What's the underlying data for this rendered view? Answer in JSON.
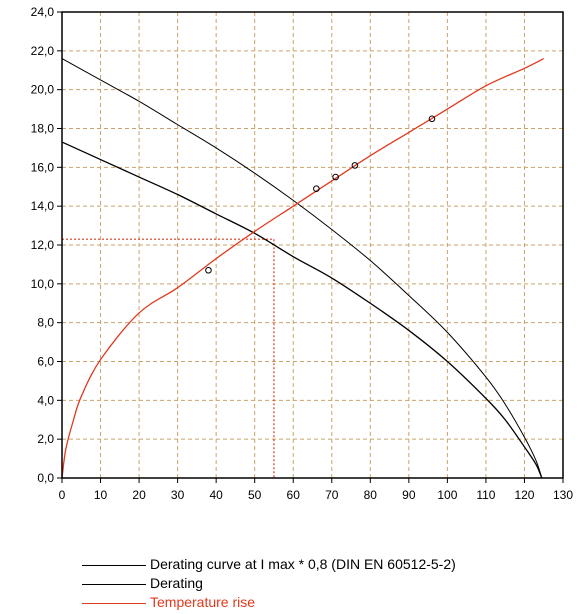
{
  "chart_data": {
    "type": "line",
    "title": "",
    "xlabel": "",
    "ylabel": "",
    "xlim": [
      0,
      130
    ],
    "ylim": [
      0,
      24
    ],
    "x_ticks": [
      "0",
      "10",
      "20",
      "30",
      "40",
      "50",
      "60",
      "70",
      "80",
      "90",
      "100",
      "110",
      "120",
      "130"
    ],
    "y_ticks": [
      "0,0",
      "2,0",
      "4,0",
      "6,0",
      "8,0",
      "10,0",
      "12,0",
      "14,0",
      "16,0",
      "18,0",
      "20,0",
      "22,0",
      "24,0"
    ],
    "grid": true,
    "legend_position": "bottom",
    "series": [
      {
        "name": "Derating curve at I max * 0,8 (DIN EN 60512-5-2)",
        "color": "#000000",
        "points": [
          [
            0,
            17.3
          ],
          [
            10,
            16.4
          ],
          [
            20,
            15.5
          ],
          [
            30,
            14.6
          ],
          [
            40,
            13.6
          ],
          [
            50,
            12.6
          ],
          [
            60,
            11.4
          ],
          [
            70,
            10.3
          ],
          [
            80,
            9.0
          ],
          [
            90,
            7.6
          ],
          [
            100,
            6.0
          ],
          [
            110,
            4.1
          ],
          [
            115,
            3.0
          ],
          [
            120,
            1.6
          ],
          [
            123,
            0.7
          ],
          [
            124.5,
            0.0
          ]
        ]
      },
      {
        "name": "Derating",
        "color": "#000000",
        "points": [
          [
            0,
            21.6
          ],
          [
            10,
            20.5
          ],
          [
            20,
            19.4
          ],
          [
            30,
            18.2
          ],
          [
            40,
            17.0
          ],
          [
            50,
            15.7
          ],
          [
            60,
            14.3
          ],
          [
            70,
            12.8
          ],
          [
            80,
            11.2
          ],
          [
            90,
            9.4
          ],
          [
            100,
            7.5
          ],
          [
            110,
            5.2
          ],
          [
            115,
            3.8
          ],
          [
            120,
            2.1
          ],
          [
            123,
            0.9
          ],
          [
            124.5,
            0.0
          ]
        ]
      },
      {
        "name": "Temperature rise",
        "color": "#e0391e",
        "points": [
          [
            0,
            0.0
          ],
          [
            1,
            1.5
          ],
          [
            3,
            3.0
          ],
          [
            5,
            4.2
          ],
          [
            10,
            6.1
          ],
          [
            20,
            8.5
          ],
          [
            30,
            9.8
          ],
          [
            40,
            11.3
          ],
          [
            50,
            12.7
          ],
          [
            60,
            14.0
          ],
          [
            70,
            15.3
          ],
          [
            80,
            16.6
          ],
          [
            90,
            17.8
          ],
          [
            100,
            19.0
          ],
          [
            110,
            20.2
          ],
          [
            120,
            21.1
          ],
          [
            125,
            21.6
          ]
        ],
        "markers": [
          [
            38,
            10.7
          ],
          [
            66,
            14.9
          ],
          [
            71,
            15.5
          ],
          [
            76,
            16.1
          ],
          [
            96,
            18.5
          ]
        ]
      }
    ],
    "reference_lines": {
      "color": "#e0391e",
      "x": 55,
      "y": 12.3
    }
  }
}
